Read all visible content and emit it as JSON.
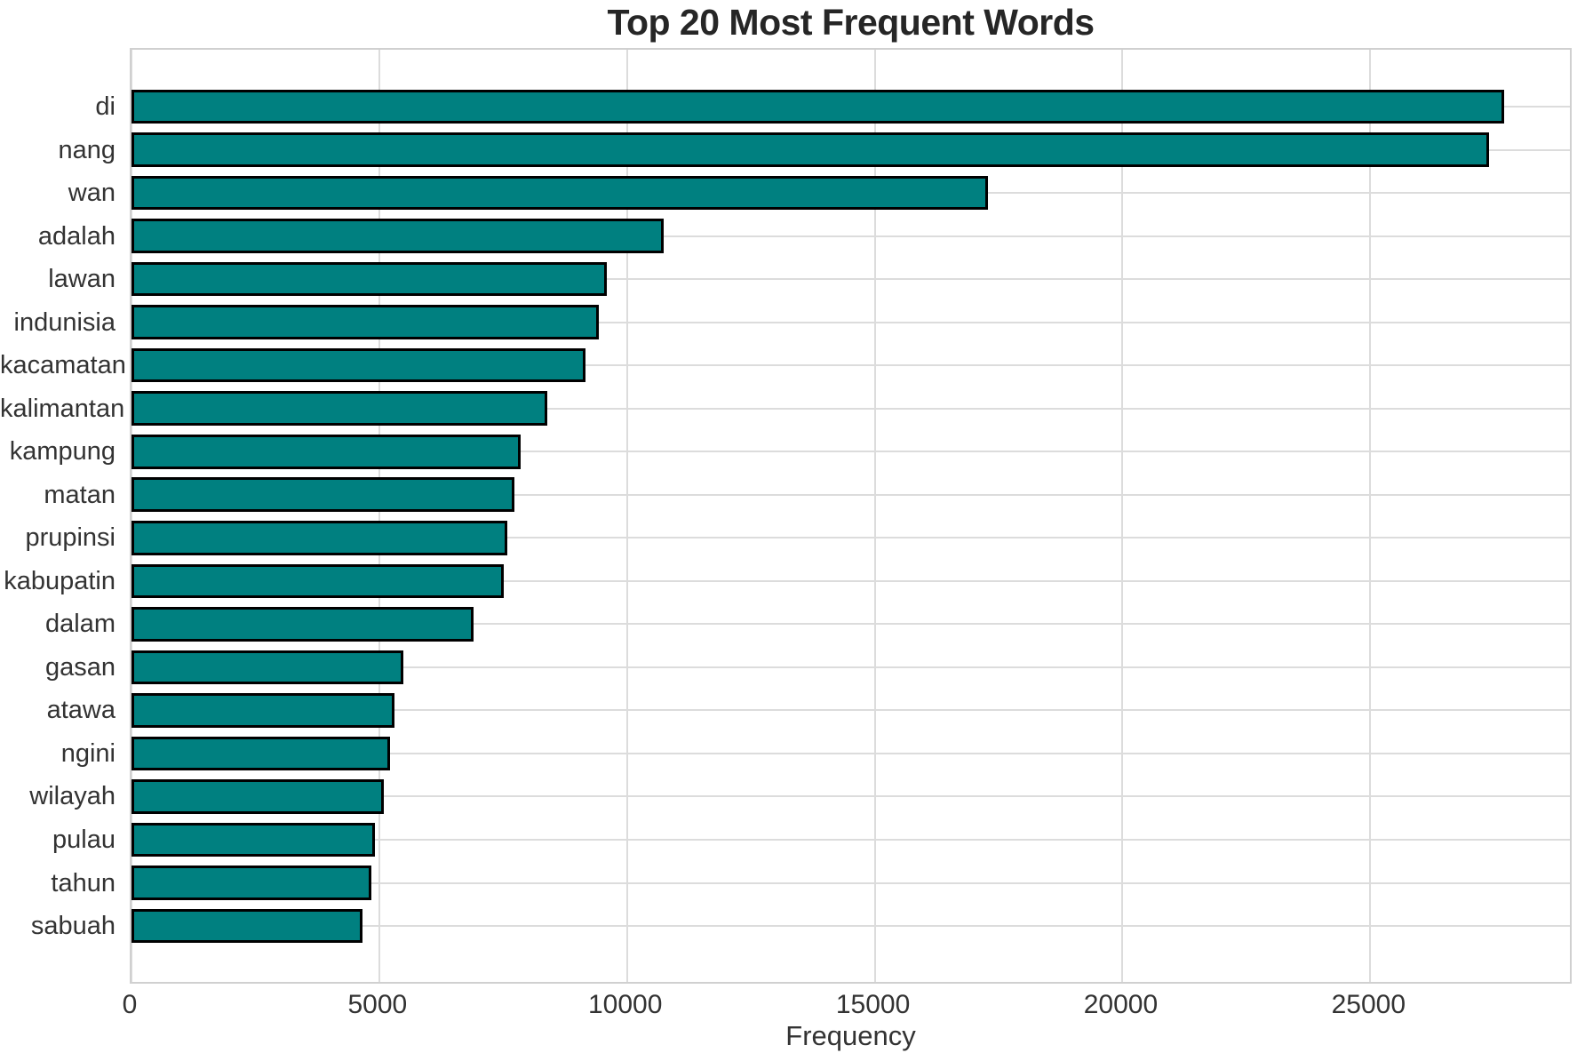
{
  "title": "Top 20 Most Frequent Words",
  "chart_data": {
    "type": "bar",
    "orientation": "horizontal",
    "title": "Top 20 Most Frequent Words",
    "xlabel": "Frequency",
    "ylabel": "",
    "categories": [
      "di",
      "nang",
      "wan",
      "adalah",
      "lawan",
      "indunisia",
      "kacamatan",
      "kalimantan",
      "kampung",
      "matan",
      "prupinsi",
      "kabupatin",
      "dalam",
      "gasan",
      "atawa",
      "ngini",
      "wilayah",
      "pulau",
      "tahun",
      "sabuah"
    ],
    "values": [
      27700,
      27400,
      17280,
      10740,
      9600,
      9440,
      9170,
      8400,
      7850,
      7720,
      7590,
      7510,
      6900,
      5490,
      5300,
      5220,
      5100,
      4920,
      4840,
      4660
    ],
    "xlim": [
      0,
      29100
    ],
    "xticks": [
      0,
      5000,
      10000,
      15000,
      20000,
      25000
    ],
    "xtick_labels": [
      "0",
      "5000",
      "10000",
      "15000",
      "20000",
      "25000"
    ],
    "grid": true,
    "legend": null,
    "colors": {
      "bar_fill": "#008080",
      "bar_edge": "#000000",
      "gridline": "#dcdcdc",
      "plot_border": "#d0d0d0",
      "title_text": "#262626",
      "tick_text": "#333333",
      "background": "#ffffff"
    }
  }
}
